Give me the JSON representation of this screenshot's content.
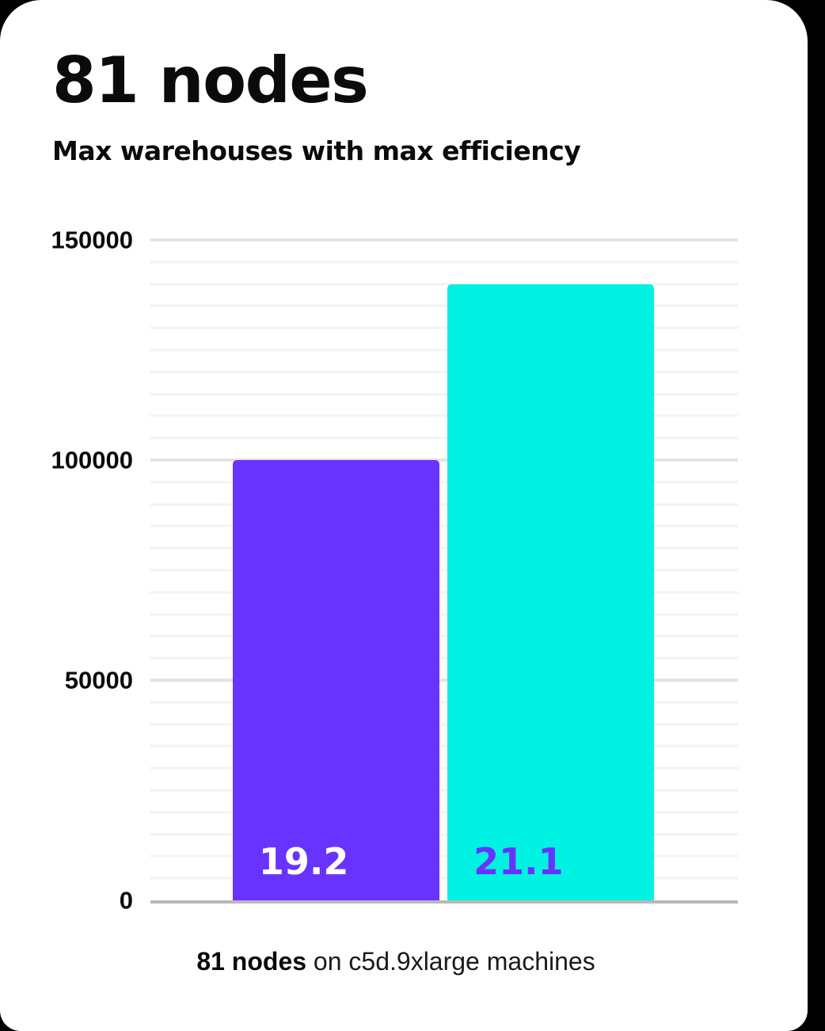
{
  "header": {
    "title": "81 nodes",
    "subtitle": "Max warehouses with max efficiency"
  },
  "caption": {
    "bold_text": "81 nodes",
    "rest_text": " on c5d.9xlarge machines"
  },
  "colors": {
    "background": "#000000",
    "card": "#ffffff",
    "bar_primary_purple": "#6933FF",
    "bar_secondary_cyan": "#00F2E2",
    "axis_line": "#b9b9b9",
    "gridline_major": "#e3e3e3",
    "gridline_minor": "#f2f2f2"
  },
  "chart_data": {
    "type": "bar",
    "title": "81 nodes",
    "subtitle": "Max warehouses with max efficiency",
    "caption": "81 nodes on c5d.9xlarge machines",
    "categories": [
      "19.2",
      "21.1"
    ],
    "values": [
      100000,
      140000
    ],
    "bar_labels": [
      "19.2",
      "21.1"
    ],
    "bar_colors": [
      "#6933FF",
      "#00F2E2"
    ],
    "bar_label_colors": [
      "#ffffff",
      "#6933FF"
    ],
    "xlabel": "",
    "ylabel": "",
    "ylim": [
      0,
      150000
    ],
    "yticks": [
      {
        "value": 0,
        "label": "0"
      },
      {
        "value": 50000,
        "label": "50000"
      },
      {
        "value": 100000,
        "label": "100000"
      },
      {
        "value": 150000,
        "label": "150000"
      }
    ],
    "minor_gridline_interval": 5000,
    "major_gridline_interval": 50000,
    "grid": true,
    "legend_position": "none"
  }
}
